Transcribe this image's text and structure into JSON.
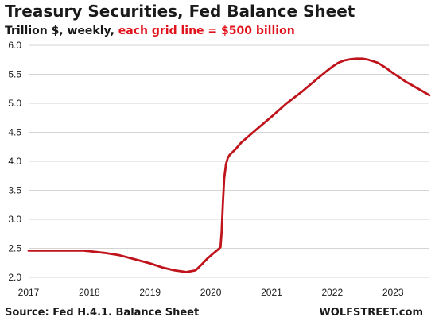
{
  "header": {
    "title": "Treasury Securities, Fed Balance Sheet",
    "subtitle_plain": "Trillion $, weekly, ",
    "subtitle_highlight": "each grid line = $500 billion"
  },
  "footer": {
    "source": "Source: Fed H.4.1. Balance Sheet",
    "brand": "WOLFSTREET.com"
  },
  "colors": {
    "line": "#c0141c",
    "highlight": "#e0121b",
    "grid": "#d4d4d4"
  },
  "chart_data": {
    "type": "line",
    "title": "Treasury Securities, Fed Balance Sheet",
    "subtitle": "Trillion $, weekly, each grid line = $500 billion",
    "xlabel": "",
    "ylabel": "",
    "xlim": [
      2017.0,
      2023.6
    ],
    "ylim": [
      2.0,
      6.0
    ],
    "grid": "horizontal",
    "x_ticks": [
      2017,
      2018,
      2019,
      2020,
      2021,
      2022,
      2023
    ],
    "x_tick_labels": [
      "2017",
      "2018",
      "2019",
      "2020",
      "2021",
      "2022",
      "2023"
    ],
    "y_ticks": [
      2.0,
      2.5,
      3.0,
      3.5,
      4.0,
      4.5,
      5.0,
      5.5,
      6.0
    ],
    "y_tick_labels": [
      "2.0",
      "2.5",
      "3.0",
      "3.5",
      "4.0",
      "4.5",
      "5.0",
      "5.5",
      "6.0"
    ],
    "series": [
      {
        "x": [
          2017.0,
          2017.5,
          2017.9,
          2018.0,
          2018.25,
          2018.5,
          2018.75,
          2019.0,
          2019.2,
          2019.4,
          2019.6,
          2019.75,
          2019.85,
          2019.95,
          2020.05,
          2020.12,
          2020.16,
          2020.18,
          2020.2,
          2020.22,
          2020.25,
          2020.28,
          2020.31,
          2020.35,
          2020.4,
          2020.5,
          2020.75,
          2021.0,
          2021.25,
          2021.5,
          2021.75,
          2021.9,
          2022.0,
          2022.1,
          2022.2,
          2022.3,
          2022.4,
          2022.5,
          2022.6,
          2022.75,
          2022.9,
          2023.0,
          2023.1,
          2023.2,
          2023.3,
          2023.4,
          2023.5,
          2023.6
        ],
        "values": [
          2.46,
          2.46,
          2.46,
          2.45,
          2.42,
          2.38,
          2.31,
          2.24,
          2.17,
          2.12,
          2.09,
          2.12,
          2.22,
          2.33,
          2.42,
          2.48,
          2.52,
          2.8,
          3.3,
          3.7,
          3.95,
          4.06,
          4.11,
          4.15,
          4.2,
          4.32,
          4.55,
          4.77,
          5.0,
          5.2,
          5.42,
          5.55,
          5.63,
          5.7,
          5.74,
          5.76,
          5.77,
          5.77,
          5.75,
          5.7,
          5.6,
          5.52,
          5.45,
          5.38,
          5.32,
          5.26,
          5.2,
          5.14
        ]
      }
    ]
  }
}
